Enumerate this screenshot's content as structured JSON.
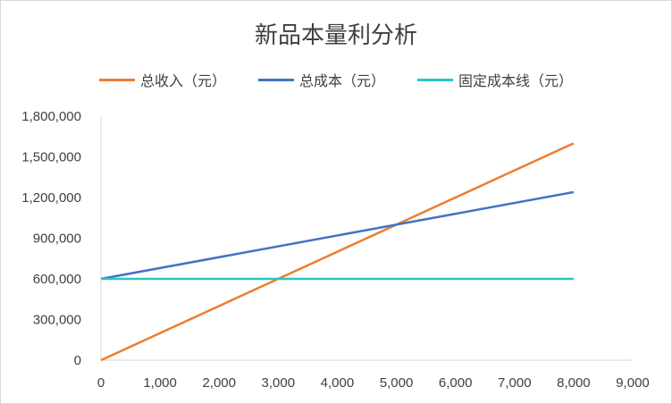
{
  "chart_data": {
    "type": "line",
    "title": "新品本量利分析",
    "xlabel": "",
    "ylabel": "",
    "xlim": [
      0,
      9000
    ],
    "ylim": [
      0,
      1800000
    ],
    "x_ticks": [
      "0",
      "1,000",
      "2,000",
      "3,000",
      "4,000",
      "5,000",
      "6,000",
      "7,000",
      "8,000",
      "9,000"
    ],
    "y_ticks": [
      "0",
      "300,000",
      "600,000",
      "900,000",
      "1,200,000",
      "1,500,000",
      "1,800,000"
    ],
    "grid": false,
    "legend_position": "top",
    "series": [
      {
        "name": "总收入（元）",
        "color": "#ED7D31",
        "x": [
          0,
          8000
        ],
        "y": [
          0,
          1600000
        ]
      },
      {
        "name": "总成本（元）",
        "color": "#4472C4",
        "x": [
          0,
          8000
        ],
        "y": [
          600000,
          1240000
        ]
      },
      {
        "name": "固定成本线（元）",
        "color": "#2EC4C4",
        "x": [
          0,
          8000
        ],
        "y": [
          600000,
          600000
        ]
      }
    ]
  }
}
